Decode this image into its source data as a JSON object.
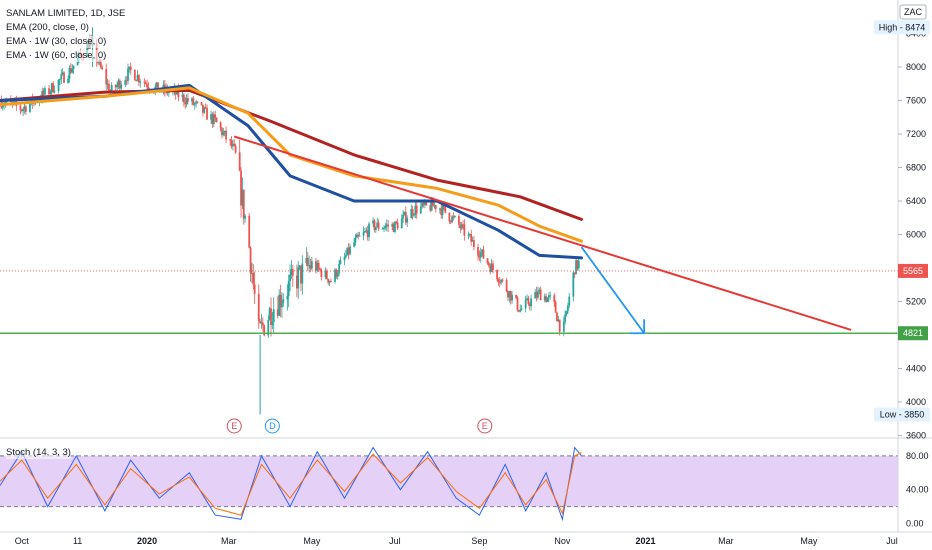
{
  "header": {
    "title": "SANLAM LIMITED, 1D, JSE",
    "currency": "ZAC"
  },
  "indicators": [
    {
      "label": "EMA (200, close, 0)",
      "color": "#b22222"
    },
    {
      "label": "EMA · 1W (30, close, 0)",
      "color": "#1e4fa0"
    },
    {
      "label": "EMA · 1W (60, close, 0)",
      "color": "#f59c1a"
    }
  ],
  "stoch_label": "Stoch (14, 3, 3)",
  "price_tags": {
    "high_label": "High - 8474",
    "low_label": "Low - 3850",
    "current": "5565",
    "support": "4821"
  },
  "event_markers": [
    {
      "label": "E",
      "date": "2020-03-05",
      "color": "#d05060"
    },
    {
      "label": "D",
      "date": "2020-04-02",
      "color": "#2196f3"
    },
    {
      "label": "E",
      "date": "2020-09-05",
      "color": "#d05060"
    }
  ],
  "chart_data": [
    {
      "type": "candlestick",
      "title": "SANLAM LIMITED, 1D, JSE",
      "xlabel": "",
      "ylabel": "",
      "x_ticks": [
        "Oct",
        "11",
        "2020",
        "Mar",
        "May",
        "Jul",
        "Sep",
        "Nov",
        "2021",
        "Mar",
        "May",
        "Jul"
      ],
      "y_ticks": [
        3600,
        4000,
        4400,
        4800,
        5200,
        5600,
        6000,
        6400,
        6800,
        7200,
        7600,
        8000,
        8400
      ],
      "ylim": [
        3570,
        8800
      ],
      "grid": false,
      "price_path": [
        [
          "2019-09-15",
          7600
        ],
        [
          "2019-10-01",
          7500
        ],
        [
          "2019-10-20",
          7700
        ],
        [
          "2019-11-05",
          7950
        ],
        [
          "2019-11-20",
          8300
        ],
        [
          "2019-12-05",
          7700
        ],
        [
          "2019-12-20",
          7950
        ],
        [
          "2020-01-05",
          7750
        ],
        [
          "2020-01-20",
          7700
        ],
        [
          "2020-02-05",
          7550
        ],
        [
          "2020-02-20",
          7350
        ],
        [
          "2020-03-05",
          7000
        ],
        [
          "2020-03-15",
          6000
        ],
        [
          "2020-03-23",
          4800
        ],
        [
          "2020-04-01",
          5100
        ],
        [
          "2020-04-15",
          5400
        ],
        [
          "2020-05-01",
          5650
        ],
        [
          "2020-05-15",
          5450
        ],
        [
          "2020-06-01",
          5900
        ],
        [
          "2020-06-15",
          6100
        ],
        [
          "2020-07-01",
          6100
        ],
        [
          "2020-07-15",
          6300
        ],
        [
          "2020-08-01",
          6350
        ],
        [
          "2020-08-15",
          6150
        ],
        [
          "2020-09-01",
          5800
        ],
        [
          "2020-09-15",
          5500
        ],
        [
          "2020-10-01",
          5100
        ],
        [
          "2020-10-15",
          5300
        ],
        [
          "2020-10-25",
          5200
        ],
        [
          "2020-11-01",
          4800
        ],
        [
          "2020-11-10",
          5600
        ],
        [
          "2020-11-15",
          5700
        ]
      ],
      "price_low": 3850,
      "price_high": 8474,
      "last_price": 5565,
      "series": [
        {
          "name": "EMA (200, close, 0)",
          "color": "#b22222",
          "x": [
            "2019-09-15",
            "2019-12-01",
            "2020-02-01",
            "2020-04-01",
            "2020-06-01",
            "2020-08-01",
            "2020-10-01",
            "2020-11-15"
          ],
          "values": [
            7600,
            7700,
            7720,
            7350,
            6950,
            6650,
            6450,
            6180
          ]
        },
        {
          "name": "EMA · 1W (30, close, 0)",
          "color": "#1e4fa0",
          "x": [
            "2019-09-15",
            "2019-12-01",
            "2020-02-01",
            "2020-03-15",
            "2020-04-15",
            "2020-06-01",
            "2020-08-01",
            "2020-09-15",
            "2020-10-15",
            "2020-11-15"
          ],
          "values": [
            7600,
            7650,
            7780,
            7300,
            6700,
            6400,
            6400,
            6050,
            5750,
            5720
          ]
        },
        {
          "name": "EMA · 1W (60, close, 0)",
          "color": "#f59c1a",
          "x": [
            "2019-09-15",
            "2019-12-01",
            "2020-02-01",
            "2020-03-15",
            "2020-04-15",
            "2020-06-01",
            "2020-08-01",
            "2020-09-15",
            "2020-10-15",
            "2020-11-15"
          ],
          "values": [
            7550,
            7650,
            7750,
            7450,
            6950,
            6700,
            6550,
            6350,
            6100,
            5920
          ]
        }
      ],
      "annotations": [
        {
          "kind": "trendline",
          "color": "#e53935",
          "from": [
            "2020-03-05",
            7170
          ],
          "to": [
            "2021-06-01",
            4860
          ]
        },
        {
          "kind": "horizontal_line",
          "color": "#4caf50",
          "value": 4821
        },
        {
          "kind": "arrow",
          "color": "#2196f3",
          "from": [
            "2020-11-15",
            5850
          ],
          "to": [
            "2020-12-31",
            4821
          ]
        },
        {
          "kind": "price_line_dotted",
          "color": "#ef5350",
          "value": 5565
        }
      ]
    },
    {
      "type": "line",
      "title": "Stoch (14, 3, 3)",
      "ylim": [
        -10,
        100
      ],
      "y_ticks": [
        0,
        40,
        80
      ],
      "bands": [
        20,
        80
      ],
      "band_fill": "#e1c8f7",
      "series": [
        {
          "name": "%K",
          "color": "#2962ff",
          "x": [
            "2019-09-15",
            "2019-10-01",
            "2019-10-20",
            "2019-11-10",
            "2019-12-01",
            "2019-12-20",
            "2020-01-10",
            "2020-02-01",
            "2020-02-20",
            "2020-03-10",
            "2020-03-25",
            "2020-04-15",
            "2020-05-05",
            "2020-05-25",
            "2020-06-15",
            "2020-07-05",
            "2020-07-25",
            "2020-08-15",
            "2020-09-01",
            "2020-09-20",
            "2020-10-05",
            "2020-10-20",
            "2020-11-01",
            "2020-11-10",
            "2020-11-15"
          ],
          "values": [
            45,
            85,
            20,
            80,
            15,
            75,
            30,
            60,
            10,
            5,
            80,
            20,
            85,
            30,
            90,
            40,
            85,
            30,
            10,
            70,
            15,
            60,
            5,
            90,
            80
          ]
        },
        {
          "name": "%D",
          "color": "#ff6d00",
          "x": [
            "2019-09-15",
            "2019-10-01",
            "2019-10-20",
            "2019-11-10",
            "2019-12-01",
            "2019-12-20",
            "2020-01-10",
            "2020-02-01",
            "2020-02-20",
            "2020-03-10",
            "2020-03-25",
            "2020-04-15",
            "2020-05-05",
            "2020-05-25",
            "2020-06-15",
            "2020-07-05",
            "2020-07-25",
            "2020-08-15",
            "2020-09-01",
            "2020-09-20",
            "2020-10-05",
            "2020-10-20",
            "2020-11-01",
            "2020-11-10",
            "2020-11-15"
          ],
          "values": [
            50,
            75,
            30,
            70,
            22,
            65,
            35,
            55,
            18,
            10,
            70,
            30,
            75,
            38,
            82,
            48,
            78,
            38,
            18,
            60,
            22,
            52,
            12,
            80,
            84
          ]
        }
      ]
    }
  ]
}
